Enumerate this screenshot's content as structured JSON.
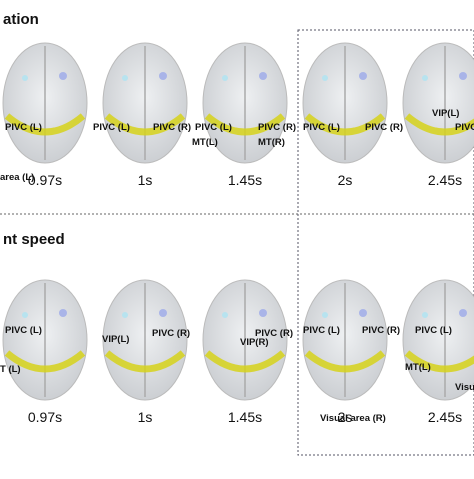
{
  "panels": [
    {
      "title": "ation",
      "brains": [
        {
          "time": "0.97s",
          "labels": [
            "PIVC (L)",
            "area (L)"
          ]
        },
        {
          "time": "1s",
          "labels": [
            "PIVC (L)",
            "PIVC (R)"
          ]
        },
        {
          "time": "1.45s",
          "labels": [
            "PIVC (L)",
            "PIVC (R)",
            "MT(L)",
            "MT(R)"
          ]
        },
        {
          "time": "2s",
          "labels": [
            "PIVC (L)",
            "PIVC (R)"
          ]
        },
        {
          "time": "2.45s",
          "labels": [
            "VIP(L)",
            "PIVC (R)"
          ]
        }
      ]
    },
    {
      "title": "nt speed",
      "brains": [
        {
          "time": "0.97s",
          "labels": [
            "PIVC (L)",
            "T (L)"
          ]
        },
        {
          "time": "1s",
          "labels": [
            "VIP(L)",
            "PIVC (R)"
          ]
        },
        {
          "time": "1.45s",
          "labels": [
            "PIVC (R)",
            "VIP(R)"
          ]
        },
        {
          "time": "2s",
          "labels": [
            "PIVC (L)",
            "PIVC (R)",
            "Visual area (R)"
          ]
        },
        {
          "time": "2.45s",
          "labels": [
            "PIVC (L)",
            "MT(L)",
            "Visua"
          ]
        }
      ]
    }
  ]
}
